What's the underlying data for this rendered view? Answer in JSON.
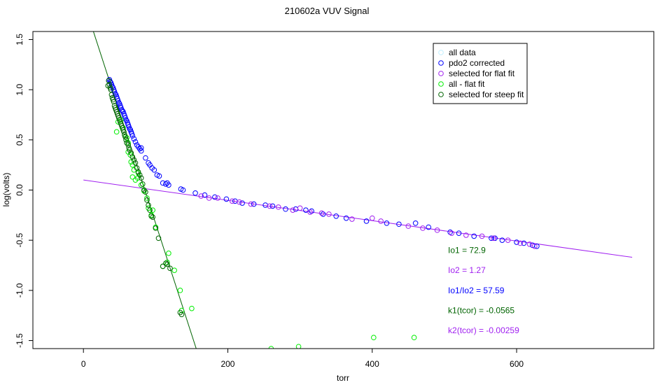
{
  "chart_data": {
    "type": "scatter",
    "title": "210602a   VUV Signal",
    "xlabel": "torr",
    "ylabel": "log(volts)",
    "xlim": [
      -70,
      790
    ],
    "ylim": [
      -1.58,
      1.58
    ],
    "xticks": [
      0,
      200,
      400,
      600
    ],
    "yticks": [
      -1.5,
      -1.0,
      -0.5,
      0.0,
      0.5,
      1.0,
      1.5
    ],
    "xtick_labels": [
      "0",
      "200",
      "400",
      "600"
    ],
    "ytick_labels": [
      "-1.5",
      "-1.0",
      "-0.5",
      "0.0",
      "0.5",
      "1.0",
      "1.5"
    ],
    "grid": false,
    "legend_position": "top-right",
    "legend": [
      {
        "label": "all data",
        "color": "#bfefff"
      },
      {
        "label": "pdo2 corrected",
        "color": "#0000ff"
      },
      {
        "label": "selected for flat fit",
        "color": "#a020f0"
      },
      {
        "label": "all - flat fit",
        "color": "#00ee00"
      },
      {
        "label": "selected for steep fit",
        "color": "#006400"
      }
    ],
    "series": [
      {
        "name": "pdo2 corrected",
        "color": "#0000ff",
        "points": [
          [
            35,
            1.09
          ],
          [
            36,
            1.1
          ],
          [
            37,
            1.08
          ],
          [
            38,
            1.07
          ],
          [
            39,
            1.05
          ],
          [
            40,
            1.03
          ],
          [
            41,
            1.02
          ],
          [
            42,
            1.0
          ],
          [
            43,
            0.98
          ],
          [
            44,
            0.96
          ],
          [
            45,
            0.95
          ],
          [
            46,
            0.93
          ],
          [
            47,
            0.91
          ],
          [
            48,
            0.89
          ],
          [
            49,
            0.87
          ],
          [
            50,
            0.86
          ],
          [
            51,
            0.84
          ],
          [
            52,
            0.82
          ],
          [
            53,
            0.8
          ],
          [
            54,
            0.79
          ],
          [
            55,
            0.78
          ],
          [
            56,
            0.76
          ],
          [
            57,
            0.74
          ],
          [
            58,
            0.72
          ],
          [
            59,
            0.7
          ],
          [
            60,
            0.69
          ],
          [
            61,
            0.67
          ],
          [
            62,
            0.65
          ],
          [
            63,
            0.63
          ],
          [
            64,
            0.61
          ],
          [
            65,
            0.6
          ],
          [
            66,
            0.58
          ],
          [
            67,
            0.56
          ],
          [
            68,
            0.54
          ],
          [
            70,
            0.51
          ],
          [
            72,
            0.48
          ],
          [
            74,
            0.45
          ],
          [
            76,
            0.43
          ],
          [
            78,
            0.41
          ],
          [
            80,
            0.39
          ],
          [
            80,
            0.42
          ],
          [
            86,
            0.32
          ],
          [
            90,
            0.27
          ],
          [
            92,
            0.25
          ],
          [
            95,
            0.22
          ],
          [
            98,
            0.2
          ],
          [
            102,
            0.15
          ],
          [
            105,
            0.14
          ],
          [
            110,
            0.07
          ],
          [
            114,
            0.06
          ],
          [
            116,
            0.07
          ],
          [
            118,
            0.05
          ],
          [
            135,
            0.01
          ],
          [
            138,
            0.0
          ],
          [
            155,
            -0.03
          ],
          [
            168,
            -0.05
          ],
          [
            182,
            -0.07
          ],
          [
            198,
            -0.09
          ],
          [
            210,
            -0.11
          ],
          [
            220,
            -0.13
          ],
          [
            236,
            -0.14
          ],
          [
            252,
            -0.15
          ],
          [
            262,
            -0.16
          ],
          [
            280,
            -0.19
          ],
          [
            294,
            -0.19
          ],
          [
            308,
            -0.2
          ],
          [
            316,
            -0.21
          ],
          [
            332,
            -0.24
          ],
          [
            350,
            -0.26
          ],
          [
            364,
            -0.28
          ],
          [
            392,
            -0.31
          ],
          [
            420,
            -0.33
          ],
          [
            437,
            -0.34
          ],
          [
            460,
            -0.33
          ],
          [
            478,
            -0.37
          ],
          [
            508,
            -0.42
          ],
          [
            520,
            -0.43
          ],
          [
            541,
            -0.46
          ],
          [
            565,
            -0.48
          ],
          [
            570,
            -0.48
          ],
          [
            580,
            -0.5
          ],
          [
            600,
            -0.52
          ],
          [
            610,
            -0.53
          ],
          [
            622,
            -0.55
          ],
          [
            628,
            -0.56
          ]
        ]
      },
      {
        "name": "selected for flat fit",
        "color": "#a020f0",
        "points": [
          [
            163,
            -0.06
          ],
          [
            174,
            -0.08
          ],
          [
            186,
            -0.08
          ],
          [
            206,
            -0.11
          ],
          [
            216,
            -0.12
          ],
          [
            232,
            -0.14
          ],
          [
            258,
            -0.16
          ],
          [
            270,
            -0.17
          ],
          [
            290,
            -0.2
          ],
          [
            300,
            -0.18
          ],
          [
            314,
            -0.22
          ],
          [
            330,
            -0.23
          ],
          [
            340,
            -0.24
          ],
          [
            372,
            -0.29
          ],
          [
            400,
            -0.28
          ],
          [
            412,
            -0.31
          ],
          [
            450,
            -0.36
          ],
          [
            470,
            -0.38
          ],
          [
            490,
            -0.4
          ],
          [
            510,
            -0.43
          ],
          [
            530,
            -0.45
          ],
          [
            552,
            -0.46
          ],
          [
            568,
            -0.48
          ],
          [
            588,
            -0.5
          ],
          [
            605,
            -0.53
          ],
          [
            618,
            -0.54
          ],
          [
            625,
            -0.56
          ]
        ]
      },
      {
        "name": "all - flat fit",
        "color": "#00ee00",
        "points": [
          [
            46,
            0.58
          ],
          [
            48,
            0.68
          ],
          [
            52,
            0.7
          ],
          [
            55,
            0.62
          ],
          [
            57,
            0.55
          ],
          [
            58,
            0.53
          ],
          [
            60,
            0.52
          ],
          [
            62,
            0.47
          ],
          [
            62,
            0.38
          ],
          [
            65,
            0.35
          ],
          [
            66,
            0.28
          ],
          [
            68,
            0.25
          ],
          [
            68,
            0.13
          ],
          [
            70,
            0.2
          ],
          [
            72,
            0.1
          ],
          [
            75,
            0.12
          ],
          [
            76,
            0.17
          ],
          [
            80,
            0.05
          ],
          [
            84,
            -0.01
          ],
          [
            88,
            -0.08
          ],
          [
            90,
            -0.18
          ],
          [
            94,
            -0.25
          ],
          [
            96,
            -0.2
          ],
          [
            100,
            -0.37
          ],
          [
            110,
            -0.76
          ],
          [
            116,
            -0.72
          ],
          [
            118,
            -0.63
          ],
          [
            126,
            -0.8
          ],
          [
            134,
            -1.0
          ],
          [
            136,
            -1.2
          ],
          [
            150,
            -1.18
          ],
          [
            260,
            -1.58
          ],
          [
            298,
            -1.56
          ],
          [
            402,
            -1.47
          ],
          [
            458,
            -1.47
          ]
        ]
      },
      {
        "name": "selected for steep fit",
        "color": "#006400",
        "points": [
          [
            34,
            1.04
          ],
          [
            35,
            1.09
          ],
          [
            36,
            1.05
          ],
          [
            37,
            1.02
          ],
          [
            38,
            1.0
          ],
          [
            39,
            0.95
          ],
          [
            40,
            0.92
          ],
          [
            41,
            0.9
          ],
          [
            42,
            0.88
          ],
          [
            43,
            0.84
          ],
          [
            44,
            0.82
          ],
          [
            45,
            0.8
          ],
          [
            46,
            0.78
          ],
          [
            47,
            0.76
          ],
          [
            48,
            0.74
          ],
          [
            49,
            0.72
          ],
          [
            50,
            0.7
          ],
          [
            51,
            0.68
          ],
          [
            52,
            0.66
          ],
          [
            53,
            0.64
          ],
          [
            54,
            0.62
          ],
          [
            55,
            0.6
          ],
          [
            56,
            0.58
          ],
          [
            57,
            0.55
          ],
          [
            58,
            0.53
          ],
          [
            59,
            0.5
          ],
          [
            60,
            0.47
          ],
          [
            62,
            0.45
          ],
          [
            63,
            0.42
          ],
          [
            64,
            0.4
          ],
          [
            66,
            0.37
          ],
          [
            68,
            0.33
          ],
          [
            70,
            0.3
          ],
          [
            72,
            0.27
          ],
          [
            74,
            0.22
          ],
          [
            76,
            0.18
          ],
          [
            78,
            0.15
          ],
          [
            80,
            0.12
          ],
          [
            82,
            0.06
          ],
          [
            84,
            0.0
          ],
          [
            86,
            -0.02
          ],
          [
            88,
            -0.1
          ],
          [
            90,
            -0.15
          ],
          [
            92,
            -0.2
          ],
          [
            94,
            -0.26
          ],
          [
            96,
            -0.27
          ],
          [
            100,
            -0.38
          ],
          [
            104,
            -0.48
          ],
          [
            110,
            -0.76
          ],
          [
            114,
            -0.73
          ],
          [
            116,
            -0.74
          ],
          [
            120,
            -0.78
          ],
          [
            134,
            -1.22
          ],
          [
            136,
            -1.24
          ]
        ]
      }
    ],
    "fit_lines": [
      {
        "name": "flat fit",
        "color": "#a020f0",
        "x": [
          0,
          760
        ],
        "y": [
          0.1,
          -0.67
        ]
      },
      {
        "name": "steep fit",
        "color": "#006400",
        "x": [
          12,
          158
        ],
        "y": [
          1.62,
          -1.62
        ]
      }
    ],
    "annotations": [
      {
        "text": "Io1 =  72.9",
        "color": "#006400",
        "x": 505,
        "y": -0.6
      },
      {
        "text": "Io2 =  1.27",
        "color": "#a020f0",
        "x": 505,
        "y": -0.8
      },
      {
        "text": "Io1/Io2 =  57.59",
        "color": "#0000ff",
        "x": 505,
        "y": -1.0
      },
      {
        "text": "k1(tcor) =  -0.0565",
        "color": "#006400",
        "x": 505,
        "y": -1.2
      },
      {
        "text": "k2(tcor) =  -0.00259",
        "color": "#a020f0",
        "x": 505,
        "y": -1.4
      }
    ]
  }
}
